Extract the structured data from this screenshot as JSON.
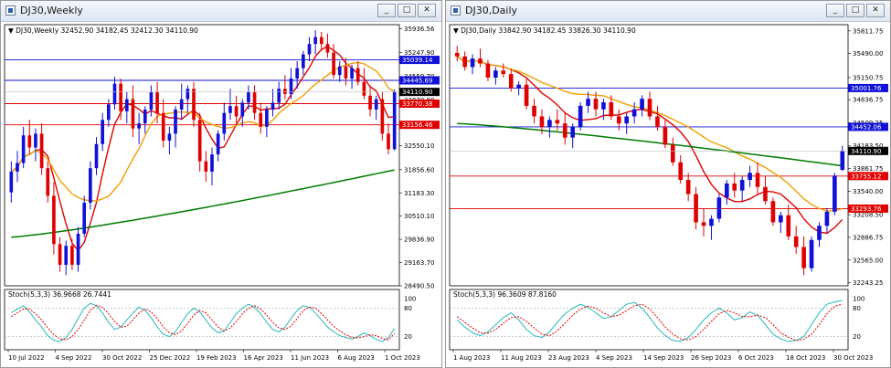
{
  "windows": [
    {
      "title": "DJ30,Weekly",
      "info": "▼ DJ30,Weekly  32452.90 34182.45 32412.30 34110.90",
      "stoch_label": "Stoch(5,3,3) 36.9668 26.7441",
      "buttons": {
        "min": "_",
        "max": "□",
        "close": "✕"
      }
    },
    {
      "title": "DJ30,Daily",
      "info": "▼ DJ30,Daily  33842.90 34182.45 33826.30 34110.90",
      "stoch_label": "Stoch(5,3,3) 96.3609 87.8160",
      "buttons": {
        "min": "_",
        "max": "□",
        "close": "✕"
      }
    }
  ],
  "colors": {
    "bull": "#1010d8",
    "bear": "#e00000",
    "ma_fast": "#e00000",
    "ma_mid": "#f0a000",
    "ma_slow": "#007a00",
    "stoch_main": "#2ab8b8",
    "stoch_signal": "#e00000",
    "level_blue": "#1010d8",
    "level_red": "#e00000"
  },
  "chart_data": [
    {
      "type": "candlestick",
      "timeframe": "Weekly",
      "ylim": [
        28490.5,
        36060
      ],
      "price_ticks": [
        "35936.56",
        "35247.90",
        "34559.70",
        "33870.80",
        "33182.30",
        "32550.10",
        "31856.60",
        "31183.30",
        "30510.10",
        "29836.90",
        "29163.70",
        "28490.50"
      ],
      "x_ticks": [
        "10 Jul 2022",
        "4 Sep 2022",
        "30 Oct 2022",
        "25 Dec 2022",
        "19 Feb 2023",
        "16 Apr 2023",
        "11 Jun 2023",
        "6 Aug 2023",
        "1 Oct 2023"
      ],
      "levels": [
        {
          "value": 35039.14,
          "label": "35039.14",
          "color": "blue"
        },
        {
          "value": 34445.69,
          "label": "34445.69",
          "color": "blue"
        },
        {
          "value": 33770.38,
          "label": "33770.38",
          "color": "red"
        },
        {
          "value": 33156.46,
          "label": "33156.46",
          "color": "red"
        }
      ],
      "last_price": {
        "value": 34110.9,
        "label": "34110.90"
      },
      "candles": [
        [
          31200,
          32100,
          30900,
          31800
        ],
        [
          31800,
          32400,
          31500,
          32050
        ],
        [
          32050,
          33100,
          31900,
          32850
        ],
        [
          32850,
          33300,
          32300,
          32500
        ],
        [
          32500,
          33050,
          32100,
          32900
        ],
        [
          32900,
          33200,
          31700,
          31900
        ],
        [
          31900,
          32100,
          30900,
          31100
        ],
        [
          31100,
          31500,
          29400,
          29700
        ],
        [
          29700,
          29900,
          28900,
          29100
        ],
        [
          29100,
          29800,
          28800,
          29650
        ],
        [
          29650,
          29850,
          28950,
          29100
        ],
        [
          29100,
          30200,
          28900,
          30000
        ],
        [
          30000,
          31100,
          29900,
          30900
        ],
        [
          30900,
          32100,
          30700,
          31900
        ],
        [
          31900,
          32800,
          31700,
          32600
        ],
        [
          32600,
          33500,
          32400,
          33300
        ],
        [
          33300,
          33900,
          33100,
          33750
        ],
        [
          33750,
          34550,
          33600,
          34350
        ],
        [
          34350,
          34500,
          33300,
          33550
        ],
        [
          33550,
          34100,
          33200,
          33900
        ],
        [
          33900,
          34300,
          32800,
          33050
        ],
        [
          33050,
          33500,
          32600,
          33200
        ],
        [
          33200,
          33700,
          32900,
          33600
        ],
        [
          33600,
          34300,
          33400,
          34100
        ],
        [
          34100,
          34400,
          33200,
          33500
        ],
        [
          33500,
          33900,
          32500,
          32700
        ],
        [
          32700,
          33100,
          32300,
          32900
        ],
        [
          32900,
          33700,
          32500,
          33600
        ],
        [
          33600,
          34350,
          33300,
          33900
        ],
        [
          33900,
          34300,
          33500,
          34200
        ],
        [
          34200,
          34400,
          33100,
          33300
        ],
        [
          33300,
          33500,
          31800,
          32100
        ],
        [
          32100,
          32400,
          31500,
          31800
        ],
        [
          31800,
          32500,
          31400,
          32300
        ],
        [
          32300,
          33000,
          32100,
          32900
        ],
        [
          32900,
          33800,
          32700,
          33500
        ],
        [
          33500,
          34200,
          33300,
          33700
        ],
        [
          33700,
          34000,
          33200,
          33400
        ],
        [
          33400,
          33900,
          33100,
          33800
        ],
        [
          33800,
          34300,
          33600,
          34100
        ],
        [
          34100,
          34300,
          33300,
          33500
        ],
        [
          33500,
          33800,
          32900,
          33100
        ],
        [
          33100,
          33700,
          32800,
          33600
        ],
        [
          33600,
          34200,
          33400,
          33800
        ],
        [
          33800,
          34400,
          33600,
          34200
        ],
        [
          34200,
          34600,
          33900,
          34050
        ],
        [
          34050,
          34800,
          33900,
          34500
        ],
        [
          34500,
          35000,
          34200,
          34800
        ],
        [
          34800,
          35300,
          34600,
          35200
        ],
        [
          35200,
          35700,
          35000,
          35500
        ],
        [
          35500,
          35900,
          35200,
          35700
        ],
        [
          35700,
          35850,
          35300,
          35500
        ],
        [
          35500,
          35800,
          35100,
          35250
        ],
        [
          35250,
          35500,
          34500,
          34600
        ],
        [
          34600,
          35000,
          34400,
          34850
        ],
        [
          34850,
          35100,
          34300,
          34500
        ],
        [
          34500,
          34900,
          34200,
          34800
        ],
        [
          34800,
          35000,
          34300,
          34400
        ],
        [
          34400,
          34800,
          33900,
          34000
        ],
        [
          34000,
          34300,
          33400,
          33600
        ],
        [
          33600,
          34000,
          33300,
          33900
        ],
        [
          33900,
          34100,
          32700,
          32900
        ],
        [
          32900,
          33200,
          32300,
          32450
        ],
        [
          32452.9,
          34182.45,
          32412.3,
          34110.9
        ]
      ],
      "stoch_main": [
        70,
        78,
        85,
        72,
        55,
        40,
        22,
        12,
        10,
        18,
        35,
        58,
        80,
        90,
        85,
        70,
        50,
        35,
        40,
        55,
        70,
        82,
        75,
        60,
        40,
        25,
        20,
        30,
        50,
        68,
        80,
        72,
        55,
        38,
        28,
        32,
        50,
        68,
        80,
        88,
        82,
        68,
        50,
        35,
        30,
        40,
        58,
        75,
        85,
        82,
        70,
        55,
        40,
        30,
        22,
        18,
        15,
        20,
        28,
        22,
        14,
        10,
        18,
        37
      ],
      "stoch_signal": [
        62,
        70,
        78,
        78,
        68,
        55,
        38,
        24,
        15,
        13,
        20,
        35,
        55,
        75,
        86,
        82,
        68,
        52,
        40,
        42,
        55,
        70,
        78,
        72,
        58,
        40,
        28,
        24,
        32,
        48,
        65,
        75,
        70,
        55,
        40,
        32,
        38,
        52,
        68,
        80,
        85,
        78,
        65,
        50,
        38,
        35,
        42,
        58,
        75,
        82,
        80,
        68,
        55,
        42,
        32,
        24,
        18,
        17,
        20,
        24,
        22,
        16,
        13,
        27
      ]
    },
    {
      "type": "candlestick",
      "timeframe": "Daily",
      "ylim": [
        32200,
        35900
      ],
      "price_ticks": [
        "35811.75",
        "35490.00",
        "35150.75",
        "34836.75",
        "34509.25",
        "34183.50",
        "33861.75",
        "33540.00",
        "33208.50",
        "32886.75",
        "32565.00",
        "32243.25"
      ],
      "x_ticks": [
        "1 Aug 2023",
        "11 Aug 2023",
        "23 Aug 2023",
        "4 Sep 2023",
        "14 Sep 2023",
        "26 Sep 2023",
        "6 Oct 2023",
        "18 Oct 2023",
        "30 Oct 2023"
      ],
      "levels": [
        {
          "value": 35001.76,
          "label": "35001.76",
          "color": "blue"
        },
        {
          "value": 34452.06,
          "label": "34452.06",
          "color": "blue"
        },
        {
          "value": 33755.12,
          "label": "33755.12",
          "color": "red"
        },
        {
          "value": 33293.76,
          "label": "33293.76",
          "color": "red"
        }
      ],
      "last_price": {
        "value": 34110.9,
        "label": "34110.90"
      },
      "candles": [
        [
          35500,
          35600,
          35380,
          35450
        ],
        [
          35450,
          35520,
          35250,
          35300
        ],
        [
          35300,
          35480,
          35200,
          35420
        ],
        [
          35420,
          35560,
          35300,
          35350
        ],
        [
          35350,
          35400,
          35100,
          35150
        ],
        [
          35150,
          35300,
          35050,
          35250
        ],
        [
          35250,
          35350,
          35150,
          35200
        ],
        [
          35200,
          35280,
          34950,
          35000
        ],
        [
          35000,
          35100,
          34900,
          35050
        ],
        [
          35050,
          35150,
          34700,
          34750
        ],
        [
          34750,
          34850,
          34500,
          34600
        ],
        [
          34600,
          34700,
          34350,
          34450
        ],
        [
          34450,
          34600,
          34300,
          34550
        ],
        [
          34550,
          34700,
          34400,
          34500
        ],
        [
          34500,
          34650,
          34200,
          34300
        ],
        [
          34300,
          34500,
          34150,
          34450
        ],
        [
          34450,
          34800,
          34400,
          34750
        ],
        [
          34750,
          34950,
          34650,
          34850
        ],
        [
          34850,
          34950,
          34600,
          34700
        ],
        [
          34700,
          34850,
          34550,
          34800
        ],
        [
          34800,
          34900,
          34550,
          34600
        ],
        [
          34600,
          34700,
          34400,
          34500
        ],
        [
          34500,
          34650,
          34350,
          34600
        ],
        [
          34600,
          34800,
          34500,
          34700
        ],
        [
          34700,
          34900,
          34600,
          34850
        ],
        [
          34850,
          34950,
          34550,
          34600
        ],
        [
          34600,
          34750,
          34400,
          34450
        ],
        [
          34450,
          34550,
          34150,
          34200
        ],
        [
          34200,
          34300,
          33900,
          33950
        ],
        [
          33950,
          34050,
          33650,
          33700
        ],
        [
          33700,
          33800,
          33400,
          33500
        ],
        [
          33500,
          33600,
          33000,
          33100
        ],
        [
          33100,
          33300,
          32900,
          33050
        ],
        [
          33050,
          33200,
          32850,
          33150
        ],
        [
          33150,
          33500,
          33100,
          33450
        ],
        [
          33450,
          33700,
          33350,
          33650
        ],
        [
          33650,
          33800,
          33450,
          33550
        ],
        [
          33550,
          33750,
          33400,
          33700
        ],
        [
          33700,
          33900,
          33600,
          33800
        ],
        [
          33800,
          33950,
          33500,
          33600
        ],
        [
          33600,
          33750,
          33350,
          33400
        ],
        [
          33400,
          33450,
          33050,
          33100
        ],
        [
          33100,
          33250,
          32950,
          33200
        ],
        [
          33200,
          33350,
          32850,
          32900
        ],
        [
          32900,
          33050,
          32650,
          32750
        ],
        [
          32750,
          32900,
          32350,
          32450
        ],
        [
          32450,
          32900,
          32400,
          32850
        ],
        [
          32850,
          33100,
          32750,
          33050
        ],
        [
          33050,
          33300,
          32950,
          33250
        ],
        [
          33250,
          33800,
          33200,
          33760
        ],
        [
          33842.9,
          34182.45,
          33826.3,
          34110.9
        ]
      ],
      "stoch_main": [
        55,
        40,
        28,
        22,
        30,
        45,
        60,
        70,
        55,
        35,
        22,
        18,
        30,
        50,
        68,
        80,
        88,
        82,
        70,
        58,
        62,
        75,
        88,
        92,
        80,
        60,
        38,
        22,
        12,
        10,
        18,
        35,
        55,
        70,
        80,
        70,
        55,
        60,
        72,
        65,
        45,
        25,
        15,
        10,
        12,
        20,
        45,
        70,
        88,
        93,
        96
      ],
      "stoch_signal": [
        62,
        50,
        38,
        28,
        27,
        35,
        48,
        60,
        62,
        52,
        38,
        25,
        22,
        32,
        48,
        65,
        78,
        84,
        80,
        70,
        62,
        65,
        75,
        85,
        88,
        78,
        60,
        40,
        25,
        15,
        13,
        20,
        35,
        52,
        68,
        75,
        70,
        62,
        62,
        65,
        60,
        45,
        28,
        18,
        12,
        14,
        25,
        45,
        68,
        84,
        88
      ]
    }
  ]
}
